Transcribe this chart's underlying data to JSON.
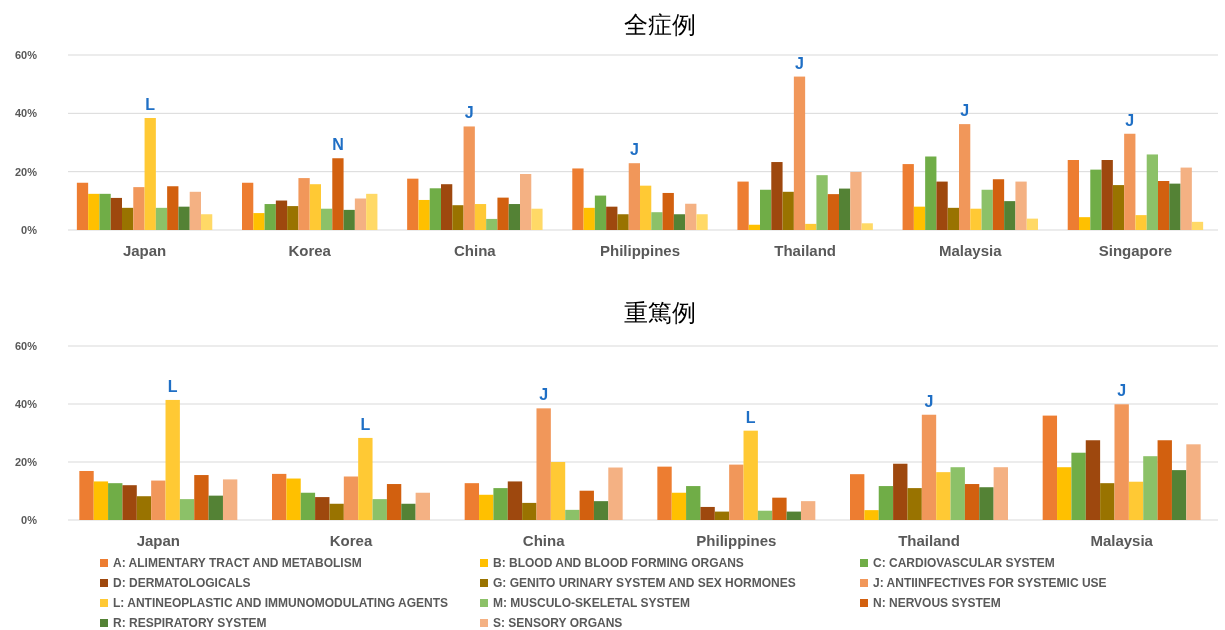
{
  "chart_data": [
    {
      "type": "bar",
      "title": "全症例",
      "categories": [
        "Japan",
        "Korea",
        "China",
        "Philippines",
        "Thailand",
        "Malaysia",
        "Singapore"
      ],
      "ylim": [
        0,
        60
      ],
      "yticks": [
        {
          "value": 0,
          "label": "0%"
        },
        {
          "value": 20,
          "label": "20%"
        },
        {
          "value": 40,
          "label": "40%"
        },
        {
          "value": 60,
          "label": "60%"
        }
      ],
      "grid": "y",
      "legend": false,
      "series": [
        {
          "color": "#ed7d31",
          "values": [
            16.2,
            16.2,
            17.6,
            21.1,
            16.6,
            22.6,
            24.0
          ]
        },
        {
          "color": "#ffc000",
          "values": [
            12.4,
            5.8,
            10.3,
            7.6,
            1.8,
            8.0,
            4.4
          ]
        },
        {
          "color": "#70ad47",
          "values": [
            12.4,
            8.9,
            14.3,
            11.8,
            13.8,
            25.2,
            20.7
          ]
        },
        {
          "color": "#9e480e",
          "values": [
            11.0,
            10.1,
            15.7,
            8.0,
            23.3,
            16.6,
            24.0
          ]
        },
        {
          "color": "#997300",
          "values": [
            7.6,
            8.2,
            8.5,
            5.4,
            13.1,
            7.6,
            15.4
          ]
        },
        {
          "color": "#f1975a",
          "values": [
            14.7,
            17.8,
            35.5,
            22.9,
            52.6,
            36.3,
            33.0
          ]
        },
        {
          "color": "#ffc934",
          "values": [
            38.4,
            15.7,
            8.9,
            15.2,
            2.1,
            7.3,
            5.1
          ]
        },
        {
          "color": "#8cc168",
          "values": [
            7.6,
            7.3,
            3.8,
            6.1,
            18.8,
            13.8,
            25.9
          ]
        },
        {
          "color": "#d2600f",
          "values": [
            15.0,
            24.6,
            11.1,
            12.7,
            12.3,
            17.4,
            16.8
          ]
        },
        {
          "color": "#548235",
          "values": [
            8.0,
            6.9,
            8.9,
            5.4,
            14.2,
            9.9,
            15.9
          ]
        },
        {
          "color": "#f4b183",
          "values": [
            13.1,
            10.8,
            19.2,
            9.0,
            19.9,
            16.6,
            21.4
          ]
        },
        {
          "color": "#ffd966",
          "values": [
            5.4,
            12.4,
            7.3,
            5.4,
            2.3,
            3.9,
            2.8
          ]
        }
      ],
      "annotations": [
        "L",
        "N",
        "J",
        "J",
        "J",
        "J",
        "J"
      ]
    },
    {
      "type": "bar",
      "title": "重篤例",
      "categories": [
        "Japan",
        "Korea",
        "China",
        "Philippines",
        "Thailand",
        "Malaysia"
      ],
      "ylim": [
        0,
        60
      ],
      "yticks": [
        {
          "value": 0,
          "label": "0%"
        },
        {
          "value": 20,
          "label": "20%"
        },
        {
          "value": 40,
          "label": "40%"
        },
        {
          "value": 60,
          "label": "60%"
        }
      ],
      "grid": "y",
      "legend": "bottom",
      "series": [
        {
          "name": "A: ALIMENTARY TRACT AND METABOLISM",
          "color": "#ed7d31",
          "values": [
            16.9,
            15.9,
            12.7,
            18.4,
            15.8,
            36.0
          ]
        },
        {
          "name": "B: BLOOD AND BLOOD FORMING ORGANS",
          "color": "#ffc000",
          "values": [
            13.3,
            14.3,
            8.7,
            9.4,
            3.4,
            18.2
          ]
        },
        {
          "name": "C: CARDIOVASCULAR SYSTEM",
          "color": "#70ad47",
          "values": [
            12.7,
            9.4,
            11.0,
            11.7,
            11.7,
            23.2
          ]
        },
        {
          "name": "D: DERMATOLOGICALS",
          "color": "#9e480e",
          "values": [
            12.0,
            7.9,
            13.3,
            4.5,
            19.4,
            27.5
          ]
        },
        {
          "name": "G: GENITO URINARY SYSTEM AND SEX HORMONES",
          "color": "#997300",
          "values": [
            8.2,
            5.6,
            5.9,
            2.9,
            11.0,
            12.7
          ]
        },
        {
          "name": "J: ANTIINFECTIVES FOR SYSTEMIC USE",
          "color": "#f1975a",
          "values": [
            13.6,
            15.0,
            38.5,
            19.1,
            36.3,
            39.9
          ]
        },
        {
          "name": "L: ANTINEOPLASTIC AND IMMUNOMODULATING AGENTS",
          "color": "#ffc934",
          "values": [
            41.4,
            28.3,
            20.0,
            30.8,
            16.5,
            13.2
          ]
        },
        {
          "name": "M: MUSCULO-SKELETAL SYSTEM",
          "color": "#8cc168",
          "values": [
            7.2,
            7.2,
            3.5,
            3.2,
            18.2,
            22.0
          ]
        },
        {
          "name": "N: NERVOUS SYSTEM",
          "color": "#d2600f",
          "values": [
            15.5,
            12.4,
            10.1,
            7.7,
            12.4,
            27.5
          ]
        },
        {
          "name": "R: RESPIRATORY SYSTEM",
          "color": "#548235",
          "values": [
            8.4,
            5.6,
            6.5,
            2.9,
            11.3,
            17.2
          ]
        },
        {
          "name": "S: SENSORY ORGANS",
          "color": "#f4b183",
          "values": [
            14.0,
            9.4,
            18.1,
            6.5,
            18.2,
            26.1
          ]
        }
      ],
      "annotations": [
        "L",
        "L",
        "J",
        "L",
        "J",
        "J"
      ]
    }
  ]
}
